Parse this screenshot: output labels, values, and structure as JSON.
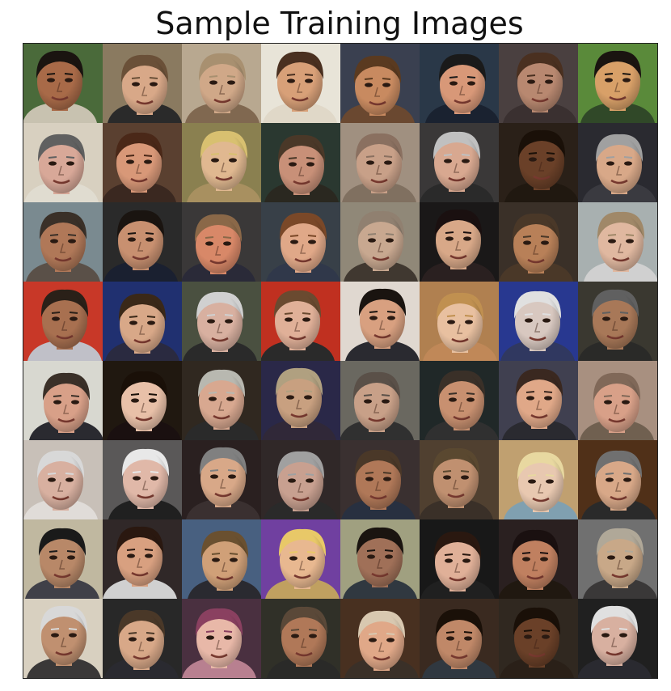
{
  "title": "Sample Training Images",
  "grid": {
    "rows": 8,
    "cols": 8
  },
  "faces": [
    {
      "bg": "#4a6a3a",
      "skin": "#a86a48",
      "hair": "#1a1410",
      "shirt": "#c8c2b0"
    },
    {
      "bg": "#8a7a60",
      "skin": "#d8a888",
      "hair": "#6a5038",
      "shirt": "#2a2a2a"
    },
    {
      "bg": "#b8a890",
      "skin": "#d0a888",
      "hair": "#a89070",
      "shirt": "#806850"
    },
    {
      "bg": "#e8e4d8",
      "skin": "#d8a078",
      "hair": "#4a3020",
      "shirt": "#e0d8c8"
    },
    {
      "bg": "#3a4050",
      "skin": "#c88a60",
      "hair": "#5a3a20",
      "shirt": "#6a4830"
    },
    {
      "bg": "#2a3848",
      "skin": "#d89878",
      "hair": "#1a1a1a",
      "shirt": "#1a2230"
    },
    {
      "bg": "#4a4040",
      "skin": "#b88870",
      "hair": "#4a3020",
      "shirt": "#3a3030"
    },
    {
      "bg": "#5a8a3a",
      "skin": "#d8a068",
      "hair": "#1a1410",
      "shirt": "#304828"
    },
    {
      "bg": "#d8d0c0",
      "skin": "#d8a898",
      "hair": "#606060",
      "shirt": "#e0dcd0"
    },
    {
      "bg": "#5a4030",
      "skin": "#d89878",
      "hair": "#4a2818",
      "shirt": "#3a2820"
    },
    {
      "bg": "#8a8050",
      "skin": "#e0b890",
      "hair": "#d8c070",
      "shirt": "#a89060"
    },
    {
      "bg": "#2a3830",
      "skin": "#c89078",
      "hair": "#4a3828",
      "shirt": "#2a2820"
    },
    {
      "bg": "#a09080",
      "skin": "#c8a088",
      "hair": "#8a7060",
      "shirt": "#807060"
    },
    {
      "bg": "#3a3838",
      "skin": "#d8a890",
      "hair": "#c0c0c0",
      "shirt": "#2a2a2a"
    },
    {
      "bg": "#2a2018",
      "skin": "#6a4028",
      "hair": "#1a1008",
      "shirt": "#201810"
    },
    {
      "bg": "#2a2a30",
      "skin": "#d8a888",
      "hair": "#a0a0a0",
      "shirt": "#3a3a40"
    },
    {
      "bg": "#7a8a90",
      "skin": "#b07858",
      "hair": "#3a3028",
      "shirt": "#5a5048"
    },
    {
      "bg": "#2a2a2a",
      "skin": "#c89070",
      "hair": "#1a1410",
      "shirt": "#1a2030"
    },
    {
      "bg": "#3a3838",
      "skin": "#d88868",
      "hair": "#8a6848",
      "shirt": "#2a2a38"
    },
    {
      "bg": "#384048",
      "skin": "#e0a888",
      "hair": "#7a4828",
      "shirt": "#30384a"
    },
    {
      "bg": "#908878",
      "skin": "#c8a890",
      "hair": "#908070",
      "shirt": "#403830"
    },
    {
      "bg": "#1a1818",
      "skin": "#d8a888",
      "hair": "#1a1010",
      "shirt": "#2a2020"
    },
    {
      "bg": "#3a3028",
      "skin": "#b88058",
      "hair": "#4a3828",
      "shirt": "#4a3828"
    },
    {
      "bg": "#a8b0b0",
      "skin": "#e0b8a0",
      "hair": "#a08868",
      "shirt": "#d0d0d0"
    },
    {
      "bg": "#c83828",
      "skin": "#a87050",
      "hair": "#2a2018",
      "shirt": "#c0c0c8"
    },
    {
      "bg": "#203070",
      "skin": "#d8a888",
      "hair": "#3a2818",
      "shirt": "#2a2a40"
    },
    {
      "bg": "#4a5040",
      "skin": "#d8b0a0",
      "hair": "#d0d0d0",
      "shirt": "#2a2a2a"
    },
    {
      "bg": "#c03020",
      "skin": "#e0b098",
      "hair": "#6a4a30",
      "shirt": "#2a2a2a"
    },
    {
      "bg": "#e0d8d0",
      "skin": "#d8a080",
      "hair": "#1a1410",
      "shirt": "#2a2a30"
    },
    {
      "bg": "#b08050",
      "skin": "#e8c0a0",
      "hair": "#c09050",
      "shirt": "#c08858"
    },
    {
      "bg": "#283890",
      "skin": "#d8c8c0",
      "hair": "#e0e0e0",
      "shirt": "#303860"
    },
    {
      "bg": "#3a3830",
      "skin": "#a87858",
      "hair": "#606060",
      "shirt": "#2a2a28"
    },
    {
      "bg": "#d8d8d0",
      "skin": "#d8a088",
      "hair": "#3a3028",
      "shirt": "#2a2a30"
    },
    {
      "bg": "#201810",
      "skin": "#e8c0a8",
      "hair": "#1a1008",
      "shirt": "#1a1010"
    },
    {
      "bg": "#302820",
      "skin": "#d8a890",
      "hair": "#b8b8b0",
      "shirt": "#2a2a2a"
    },
    {
      "bg": "#2a2848",
      "skin": "#c8a080",
      "hair": "#b0a080",
      "shirt": "#302838"
    },
    {
      "bg": "#6a6860",
      "skin": "#c8a088",
      "hair": "#5a5048",
      "shirt": "#303030"
    },
    {
      "bg": "#202828",
      "skin": "#c89070",
      "hair": "#3a3028",
      "shirt": "#303030"
    },
    {
      "bg": "#404050",
      "skin": "#e0a888",
      "hair": "#3a2820",
      "shirt": "#2a2a30"
    },
    {
      "bg": "#a89080",
      "skin": "#d8a088",
      "hair": "#806858",
      "shirt": "#706050"
    },
    {
      "bg": "#c8c0b8",
      "skin": "#d8b0a0",
      "hair": "#d8d8d8",
      "shirt": "#e0dcd8"
    },
    {
      "bg": "#5a5858",
      "skin": "#e0b8a8",
      "hair": "#e8e8e8",
      "shirt": "#202020"
    },
    {
      "bg": "#2a2020",
      "skin": "#d8a888",
      "hair": "#808080",
      "shirt": "#3a3030"
    },
    {
      "bg": "#302828",
      "skin": "#c8a090",
      "hair": "#a0a0a0",
      "shirt": "#2a2a2a"
    },
    {
      "bg": "#3a3030",
      "skin": "#b07858",
      "hair": "#4a3828",
      "shirt": "#283040"
    },
    {
      "bg": "#504030",
      "skin": "#c09070",
      "hair": "#5a4830",
      "shirt": "#3a3028"
    },
    {
      "bg": "#c0a070",
      "skin": "#e8c8b0",
      "hair": "#e8d8a0",
      "shirt": "#80a0b0"
    },
    {
      "bg": "#503018",
      "skin": "#d8a888",
      "hair": "#707070",
      "shirt": "#2a2a2a"
    },
    {
      "bg": "#c0b8a0",
      "skin": "#b88868",
      "hair": "#1a1a1a",
      "shirt": "#404048"
    },
    {
      "bg": "#302828",
      "skin": "#d8a080",
      "hair": "#2a1810",
      "shirt": "#d0d0d0"
    },
    {
      "bg": "#486080",
      "skin": "#d0a078",
      "hair": "#6a5030",
      "shirt": "#2a2a30"
    },
    {
      "bg": "#7040a0",
      "skin": "#e8b890",
      "hair": "#e8c868",
      "shirt": "#c0a060"
    },
    {
      "bg": "#a0a080",
      "skin": "#a07058",
      "hair": "#1a1410",
      "shirt": "#303840"
    },
    {
      "bg": "#181818",
      "skin": "#e0b098",
      "hair": "#2a1810",
      "shirt": "#202020"
    },
    {
      "bg": "#2a2020",
      "skin": "#c08060",
      "hair": "#1a1010",
      "shirt": "#201810"
    },
    {
      "bg": "#707070",
      "skin": "#c8a888",
      "hair": "#b0a898",
      "shirt": "#3a3838"
    },
    {
      "bg": "#d8d0c0",
      "skin": "#c09070",
      "hair": "#d8d8d8",
      "shirt": "#3a3838"
    },
    {
      "bg": "#282828",
      "skin": "#d8a888",
      "hair": "#4a3828",
      "shirt": "#2a2a30"
    },
    {
      "bg": "#4a3040",
      "skin": "#e8b8a8",
      "hair": "#8a4060",
      "shirt": "#b88090"
    },
    {
      "bg": "#303028",
      "skin": "#b07858",
      "hair": "#5a4838",
      "shirt": "#2a2a28"
    },
    {
      "bg": "#483020",
      "skin": "#e0a888",
      "hair": "#d8c8b0",
      "shirt": "#3a3028"
    },
    {
      "bg": "#3a2a20",
      "skin": "#c08868",
      "hair": "#1a1008",
      "shirt": "#303840"
    },
    {
      "bg": "#302820",
      "skin": "#6a4028",
      "hair": "#1a1008",
      "shirt": "#2a2018"
    },
    {
      "bg": "#202020",
      "skin": "#d8b0a0",
      "hair": "#e0e0e0",
      "shirt": "#2a2a30"
    }
  ]
}
